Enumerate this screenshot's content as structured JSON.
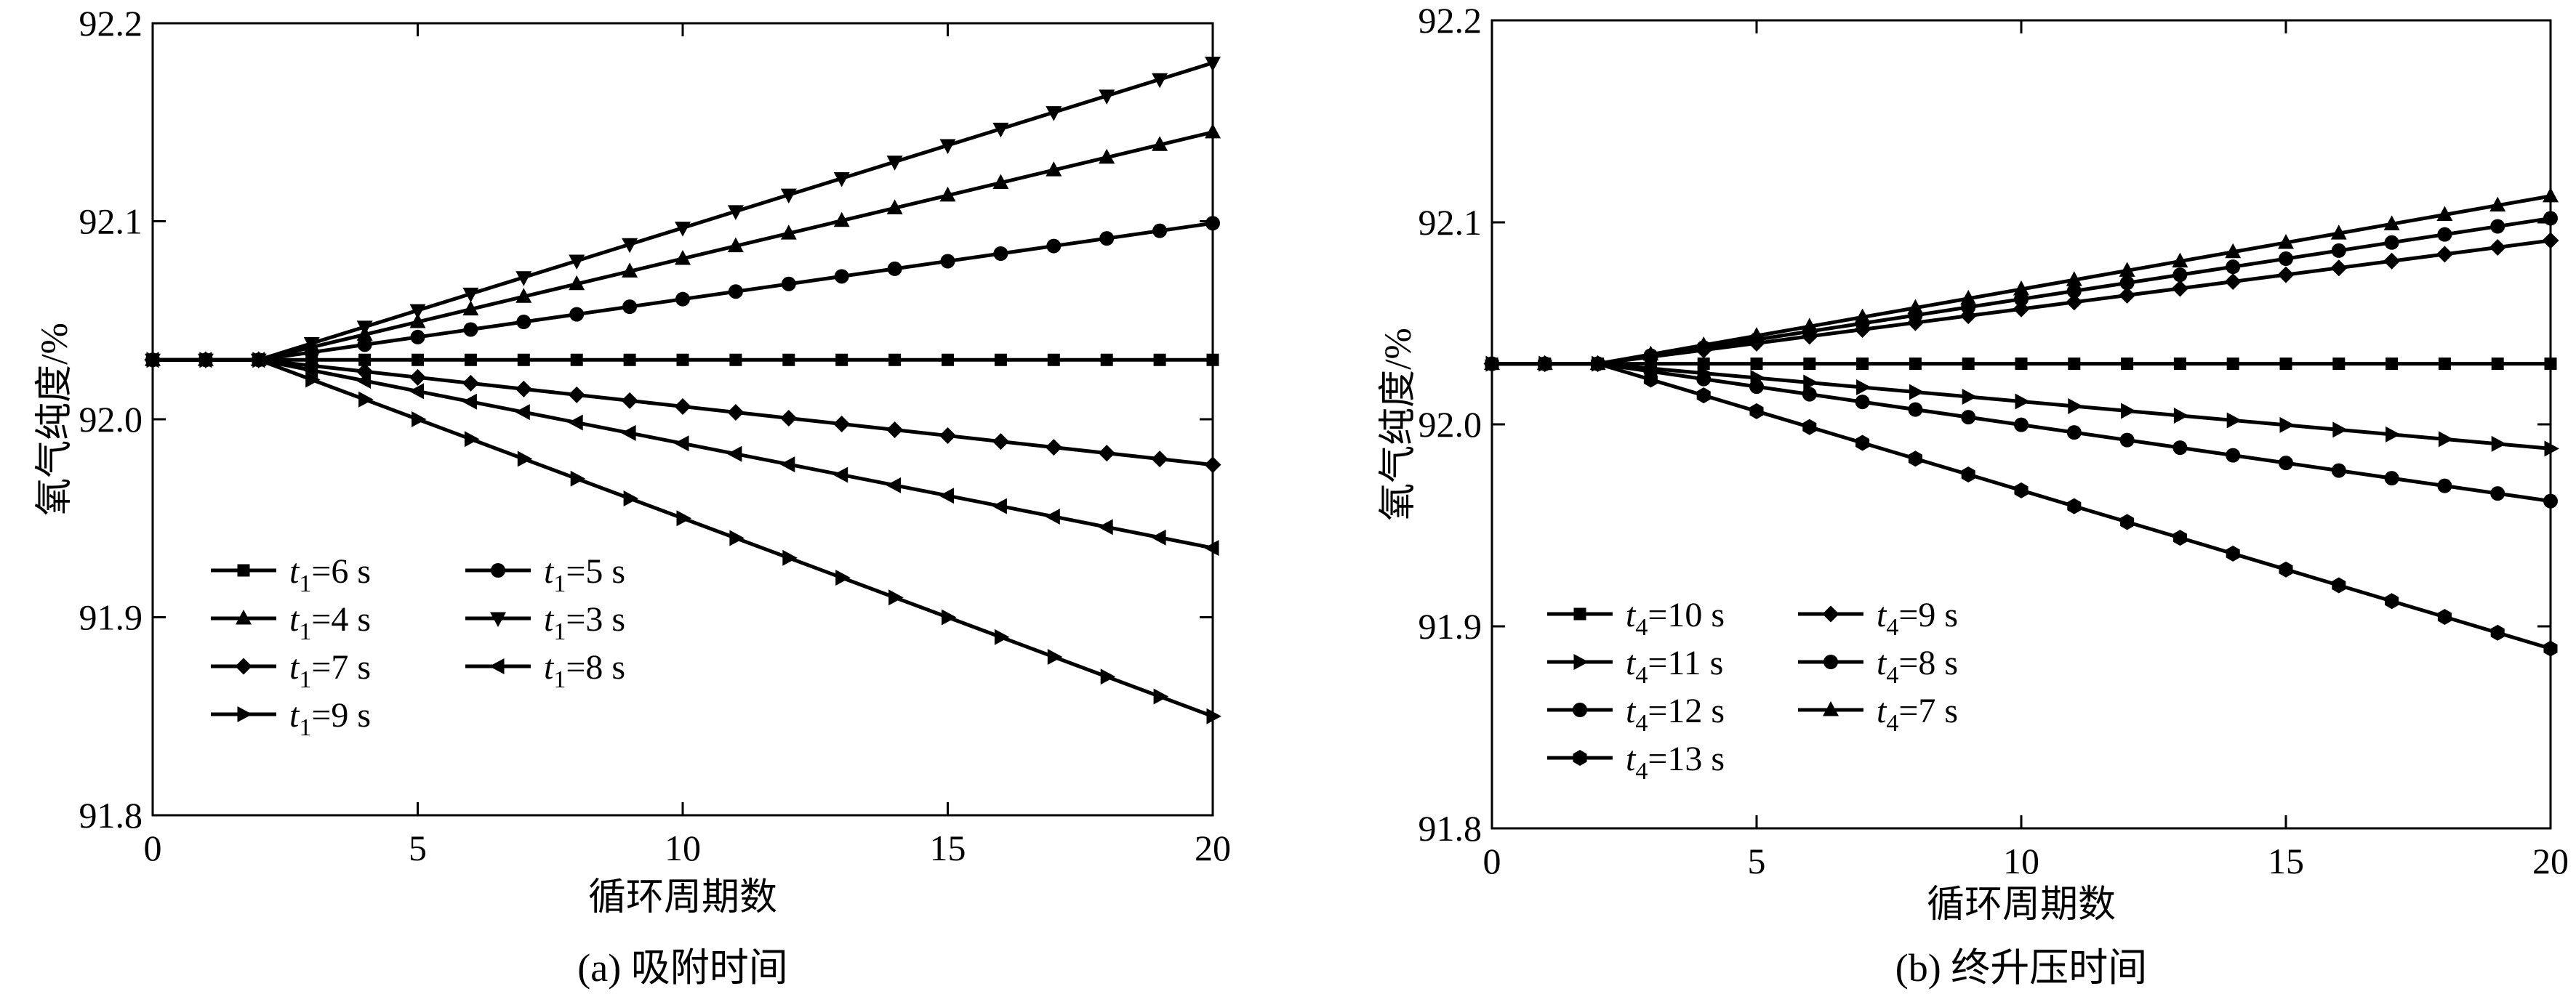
{
  "chart_data": [
    {
      "type": "line",
      "caption": "(a) 吸附时间",
      "xlabel": "循环周期数",
      "ylabel": "氧气纯度/%",
      "xlim": [
        0,
        20
      ],
      "ylim": [
        91.8,
        92.2
      ],
      "xticks": [
        "0",
        "5",
        "10",
        "15",
        "20"
      ],
      "yticks": [
        "91.8",
        "91.9",
        "92.0",
        "92.1",
        "92.2"
      ],
      "grid": false,
      "legend_position": "bottom-left",
      "series": [
        {
          "name": "t1=6 s",
          "label_var": "t",
          "label_sub": "1",
          "label_rest": "=6 s",
          "marker": "square",
          "start": 92.03,
          "end": 92.03
        },
        {
          "name": "t1=4 s",
          "label_var": "t",
          "label_sub": "1",
          "label_rest": "=4 s",
          "marker": "triangle-up",
          "start": 92.03,
          "end": 92.145
        },
        {
          "name": "t1=7 s",
          "label_var": "t",
          "label_sub": "1",
          "label_rest": "=7 s",
          "marker": "diamond",
          "start": 92.03,
          "end": 91.977
        },
        {
          "name": "t1=9 s",
          "label_var": "t",
          "label_sub": "1",
          "label_rest": "=9 s",
          "marker": "triangle-right",
          "start": 92.03,
          "end": 91.85
        },
        {
          "name": "t1=5 s",
          "label_var": "t",
          "label_sub": "1",
          "label_rest": "=5 s",
          "marker": "circle",
          "start": 92.03,
          "end": 92.099
        },
        {
          "name": "t1=3 s",
          "label_var": "t",
          "label_sub": "1",
          "label_rest": "=3 s",
          "marker": "triangle-down",
          "start": 92.03,
          "end": 92.18
        },
        {
          "name": "t1=8 s",
          "label_var": "t",
          "label_sub": "1",
          "label_rest": "=8 s",
          "marker": "triangle-left",
          "start": 92.03,
          "end": 91.935
        }
      ]
    },
    {
      "type": "line",
      "caption": "(b) 终升压时间",
      "xlabel": "循环周期数",
      "ylabel": "氧气纯度/%",
      "xlim": [
        0,
        20
      ],
      "ylim": [
        91.8,
        92.2
      ],
      "xticks": [
        "0",
        "5",
        "10",
        "15",
        "20"
      ],
      "yticks": [
        "91.8",
        "91.9",
        "92.0",
        "92.1",
        "92.2"
      ],
      "grid": false,
      "legend_position": "bottom-left",
      "series": [
        {
          "name": "t4=10 s",
          "label_var": "t",
          "label_sub": "4",
          "label_rest": "=10 s",
          "marker": "square",
          "start": 92.03,
          "end": 92.03
        },
        {
          "name": "t4=11 s",
          "label_var": "t",
          "label_sub": "4",
          "label_rest": "=11 s",
          "marker": "triangle-right",
          "start": 92.03,
          "end": 91.988
        },
        {
          "name": "t4=12 s",
          "label_var": "t",
          "label_sub": "4",
          "label_rest": "=12 s",
          "marker": "circle",
          "start": 92.03,
          "end": 91.962
        },
        {
          "name": "t4=13 s",
          "label_var": "t",
          "label_sub": "4",
          "label_rest": "=13 s",
          "marker": "hexagon",
          "start": 92.03,
          "end": 91.889
        },
        {
          "name": "t4=9 s",
          "label_var": "t",
          "label_sub": "4",
          "label_rest": "=9 s",
          "marker": "diamond",
          "start": 92.03,
          "end": 92.091
        },
        {
          "name": "t4=8 s",
          "label_var": "t",
          "label_sub": "4",
          "label_rest": "=8 s",
          "marker": "circle",
          "start": 92.03,
          "end": 92.102
        },
        {
          "name": "t4=7 s",
          "label_var": "t",
          "label_sub": "4",
          "label_rest": "=7 s",
          "marker": "triangle-up",
          "start": 92.03,
          "end": 92.113
        }
      ]
    }
  ]
}
